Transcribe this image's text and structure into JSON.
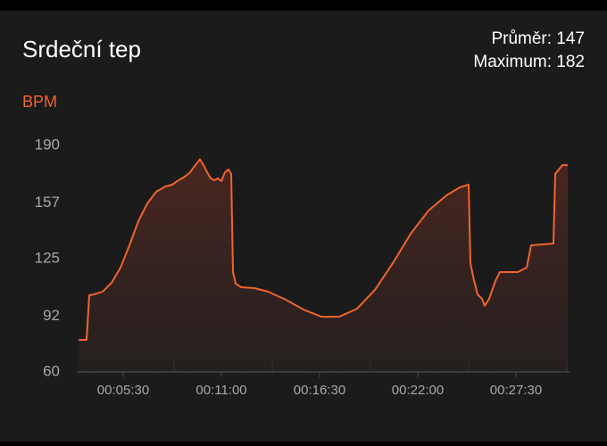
{
  "chart_data": {
    "type": "line",
    "title": "Srdeční tep",
    "annotations": [
      "Průměr: 147",
      "Maximum: 182"
    ],
    "y_label": "BPM",
    "color": "#f0642d",
    "x": [
      180,
      207,
      216,
      231,
      261,
      291,
      321,
      351,
      381,
      411,
      441,
      471,
      495,
      516,
      537,
      555,
      570,
      588,
      600,
      612,
      624,
      636,
      648,
      660,
      672,
      684,
      693,
      699,
      708,
      726,
      771,
      816,
      876,
      936,
      996,
      1056,
      1116,
      1176,
      1236,
      1296,
      1356,
      1416,
      1461,
      1491,
      1497,
      1506,
      1521,
      1536,
      1545,
      1560,
      1581,
      1596,
      1656,
      1686,
      1701,
      1776,
      1782,
      1806,
      1824
    ],
    "values": [
      78.4,
      78.4,
      104.0,
      104.5,
      106.1,
      111.2,
      119.9,
      132.7,
      146.5,
      156.7,
      163.4,
      166.4,
      167.5,
      170.0,
      172.1,
      174.6,
      178.2,
      182,
      178.7,
      174.6,
      171.1,
      170.0,
      171.1,
      169.5,
      174.6,
      176.2,
      173.6,
      117.3,
      110.7,
      108.6,
      108.1,
      106.1,
      101.5,
      95.8,
      91.7,
      91.7,
      96.3,
      107.1,
      122.4,
      139.3,
      152.6,
      161.3,
      165.9,
      167.5,
      122.4,
      114.8,
      104.5,
      102.0,
      97.9,
      102.0,
      112.2,
      117.3,
      117.3,
      119.9,
      132.7,
      133.7,
      173.6,
      178.7,
      178.7
    ],
    "xlim": [
      180,
      1824
    ],
    "xticks": [
      {
        "value": 330,
        "label": "00:05:30"
      },
      {
        "value": 660,
        "label": "00:11:00"
      },
      {
        "value": 990,
        "label": "00:16:30"
      },
      {
        "value": 1320,
        "label": "00:22:00"
      },
      {
        "value": 1650,
        "label": "00:27:30"
      }
    ],
    "ylim": [
      60,
      190
    ],
    "yticks": [
      60,
      92,
      125,
      157,
      190
    ]
  }
}
